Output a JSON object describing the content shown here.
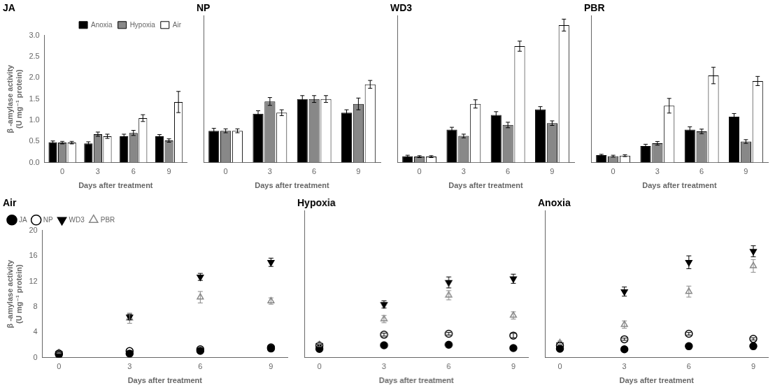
{
  "chart_data": [
    {
      "type": "bar",
      "title": "JA",
      "categories": [
        0,
        3,
        6,
        9
      ],
      "xlabel": "Days after treatment",
      "ylabel": "β -amylase activity\n(U mg⁻¹ protein)",
      "series": [
        {
          "name": "Anoxia",
          "color": "#000000",
          "values": [
            0.48,
            0.45,
            0.62,
            0.62
          ],
          "errors": [
            0.03,
            0.04,
            0.05,
            0.04
          ]
        },
        {
          "name": "Hypoxia",
          "color": "#888888",
          "values": [
            0.47,
            0.67,
            0.7,
            0.52
          ],
          "errors": [
            0.03,
            0.05,
            0.06,
            0.04
          ]
        },
        {
          "name": "Air",
          "color": "#ffffff",
          "values": [
            0.47,
            0.62,
            1.05,
            1.43
          ],
          "errors": [
            0.03,
            0.05,
            0.08,
            0.25
          ]
        }
      ],
      "ylim": [
        0,
        3.0
      ],
      "yticks": [
        {
          "value": 0,
          "label": "0.0"
        },
        0.5,
        {
          "value": 1,
          "label": "1.0"
        },
        1.5,
        {
          "value": 2,
          "label": "2.0"
        },
        2.5,
        {
          "value": 3,
          "label": "3.0"
        }
      ],
      "grid": false,
      "legend": "upper right"
    },
    {
      "type": "bar",
      "title": "NP",
      "categories": [
        0,
        3,
        6,
        9
      ],
      "xlabel": "Days after treatment",
      "series": [
        {
          "name": "Anoxia",
          "color": "#000000",
          "values": [
            0.65,
            1.0,
            1.3,
            1.02
          ],
          "errors": [
            0.05,
            0.06,
            0.07,
            0.06
          ]
        },
        {
          "name": "Hypoxia",
          "color": "#888888",
          "values": [
            0.65,
            1.25,
            1.3,
            1.2
          ],
          "errors": [
            0.04,
            0.08,
            0.07,
            0.12
          ]
        },
        {
          "name": "Air",
          "color": "#ffffff",
          "values": [
            0.65,
            1.02,
            1.3,
            1.6
          ],
          "errors": [
            0.04,
            0.06,
            0.07,
            0.08
          ]
        }
      ],
      "ylim": [
        0,
        3.0
      ],
      "yticks": [
        0.0,
        0.5,
        1.0,
        1.5,
        2.0,
        2.5,
        3.0
      ],
      "grid": false,
      "tick_labels": "x"
    },
    {
      "type": "bar",
      "title": "WD3",
      "categories": [
        0,
        3,
        6,
        9
      ],
      "xlabel": "Days after treatment",
      "series": [
        {
          "name": "Anoxia",
          "color": "#000000",
          "values": [
            0.7,
            3.6,
            5.2,
            5.8
          ],
          "errors": [
            0.1,
            0.25,
            0.35,
            0.3
          ]
        },
        {
          "name": "Hypoxia",
          "color": "#888888",
          "values": [
            0.65,
            2.9,
            4.1,
            4.3
          ],
          "errors": [
            0.1,
            0.2,
            0.3,
            0.25
          ]
        },
        {
          "name": "Air",
          "color": "#ffffff",
          "values": [
            0.65,
            6.4,
            12.7,
            15.0
          ],
          "errors": [
            0.1,
            0.45,
            0.55,
            0.65
          ]
        }
      ],
      "ylim": [
        0,
        16
      ],
      "yticks": [
        0,
        2,
        4,
        6,
        8,
        10,
        12,
        14,
        16
      ],
      "grid": false,
      "tick_labels": "x"
    },
    {
      "type": "bar",
      "title": "PBR",
      "categories": [
        0,
        3,
        6,
        9
      ],
      "xlabel": "Days after treatment",
      "series": [
        {
          "name": "Anoxia",
          "color": "#000000",
          "values": [
            0.8,
            1.8,
            3.6,
            5.0
          ],
          "errors": [
            0.1,
            0.2,
            0.3,
            0.35
          ]
        },
        {
          "name": "Hypoxia",
          "color": "#888888",
          "values": [
            0.7,
            2.1,
            3.4,
            2.3
          ],
          "errors": [
            0.1,
            0.2,
            0.25,
            0.2
          ]
        },
        {
          "name": "Air",
          "color": "#ffffff",
          "values": [
            0.75,
            6.2,
            9.5,
            8.9
          ],
          "errors": [
            0.1,
            0.8,
            0.9,
            0.5
          ]
        }
      ],
      "ylim": [
        0,
        16
      ],
      "yticks": [
        0,
        2,
        4,
        6,
        8,
        10,
        12,
        14,
        16
      ],
      "grid": false,
      "tick_labels": "x"
    },
    {
      "type": "scatter",
      "title": "Air",
      "x": [
        0,
        3,
        6,
        9
      ],
      "xlabel": "Days after treatment",
      "ylabel": "β -amylase activity\n(U mg⁻¹ protein)",
      "series": [
        {
          "name": "JA",
          "color": "#000000",
          "marker": "circle",
          "values": [
            0.47,
            0.62,
            1.05,
            1.43
          ],
          "errors": [
            0.03,
            0.05,
            0.08,
            0.25
          ]
        },
        {
          "name": "NP",
          "color": "#000000",
          "marker": "circle_open",
          "values": [
            0.65,
            1.02,
            1.3,
            1.6
          ],
          "errors": [
            0.04,
            0.06,
            0.07,
            0.08
          ]
        },
        {
          "name": "WD3",
          "color": "#000000",
          "marker": "triangle_down",
          "values": [
            0.65,
            6.4,
            12.7,
            15.0
          ],
          "errors": [
            0.1,
            0.45,
            0.55,
            0.65
          ]
        },
        {
          "name": "PBR",
          "color": "#888888",
          "marker": "triangle_up_open",
          "values": [
            0.75,
            6.2,
            9.5,
            8.9
          ],
          "errors": [
            0.1,
            0.8,
            0.9,
            0.5
          ]
        }
      ],
      "xlim": [
        -0.7,
        9.7
      ],
      "xticks": [
        0,
        3,
        6,
        9
      ],
      "ylim": [
        0,
        20
      ],
      "yticks": [
        0,
        4,
        8,
        12,
        16,
        20
      ],
      "grid": false,
      "legend": "upper left"
    },
    {
      "type": "scatter",
      "title": "Hypoxia",
      "x": [
        0,
        3,
        6,
        9
      ],
      "xlabel": "Days after treatment",
      "series": [
        {
          "name": "JA",
          "color": "#000000",
          "marker": "circle",
          "values": [
            0.47,
            0.67,
            0.7,
            0.52
          ],
          "errors": [
            0.03,
            0.05,
            0.06,
            0.04
          ]
        },
        {
          "name": "NP",
          "color": "#000000",
          "marker": "circle_open",
          "values": [
            0.65,
            1.25,
            1.3,
            1.2
          ],
          "errors": [
            0.04,
            0.08,
            0.07,
            0.12
          ]
        },
        {
          "name": "WD3",
          "color": "#000000",
          "marker": "triangle_down",
          "values": [
            0.65,
            2.9,
            4.1,
            4.3
          ],
          "errors": [
            0.1,
            0.2,
            0.3,
            0.25
          ]
        },
        {
          "name": "PBR",
          "color": "#888888",
          "marker": "triangle_up_open",
          "values": [
            0.7,
            2.1,
            3.4,
            2.3
          ],
          "errors": [
            0.1,
            0.2,
            0.25,
            0.2
          ]
        }
      ],
      "xlim": [
        -0.7,
        9.7
      ],
      "xticks": [
        0,
        3,
        6,
        9
      ],
      "ylim": [
        0,
        8
      ],
      "yticks": [
        0,
        2,
        4,
        6,
        8
      ],
      "grid": false,
      "tick_labels": "x"
    },
    {
      "type": "scatter",
      "title": "Anoxia",
      "x": [
        0,
        3,
        6,
        9
      ],
      "xlabel": "Days after treatment",
      "series": [
        {
          "name": "JA",
          "color": "#000000",
          "marker": "circle",
          "values": [
            0.48,
            0.45,
            0.62,
            0.62
          ],
          "errors": [
            0.03,
            0.04,
            0.05,
            0.04
          ]
        },
        {
          "name": "NP",
          "color": "#000000",
          "marker": "circle_open",
          "values": [
            0.65,
            1.0,
            1.3,
            1.02
          ],
          "errors": [
            0.05,
            0.06,
            0.07,
            0.06
          ]
        },
        {
          "name": "WD3",
          "color": "#000000",
          "marker": "triangle_down",
          "values": [
            0.7,
            3.6,
            5.2,
            5.8
          ],
          "errors": [
            0.1,
            0.25,
            0.35,
            0.3
          ]
        },
        {
          "name": "PBR",
          "color": "#888888",
          "marker": "triangle_up_open",
          "values": [
            0.8,
            1.8,
            3.6,
            5.0
          ],
          "errors": [
            0.1,
            0.2,
            0.3,
            0.35
          ]
        }
      ],
      "xlim": [
        -0.7,
        9.7
      ],
      "xticks": [
        0,
        3,
        6,
        9
      ],
      "ylim": [
        0,
        8
      ],
      "yticks": [
        0,
        2,
        4,
        6,
        8
      ],
      "grid": false,
      "tick_labels": "x"
    }
  ]
}
